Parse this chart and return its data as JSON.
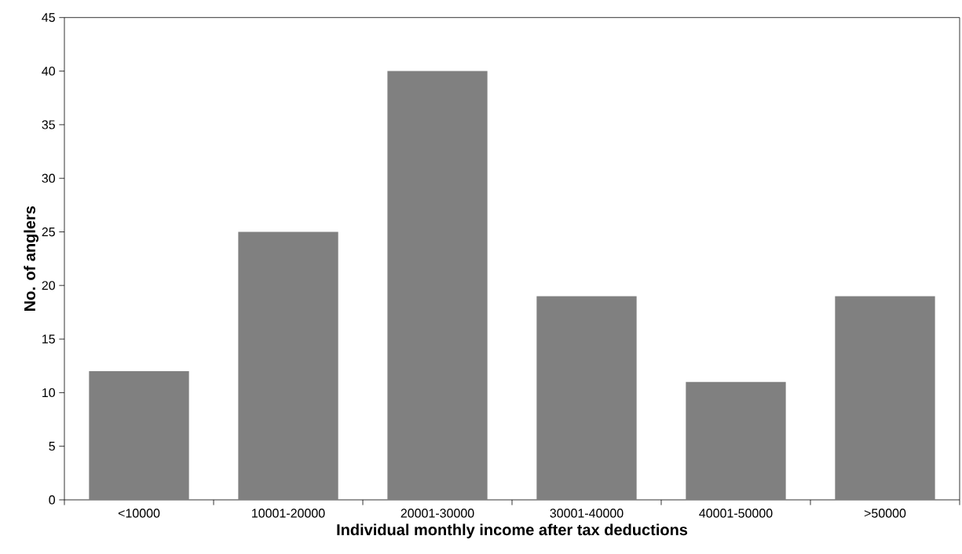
{
  "chart_data": {
    "type": "bar",
    "xlabel": "Individual monthly income after tax deductions",
    "ylabel": "No. of anglers",
    "categories": [
      "<10000",
      "10001-20000",
      "20001-30000",
      "30001-40000",
      "40001-50000",
      ">50000"
    ],
    "values": [
      12,
      25,
      40,
      19,
      11,
      19
    ],
    "color": "#808080",
    "ylim": [
      0,
      45
    ],
    "yticks": [
      0,
      5,
      10,
      15,
      20,
      25,
      30,
      35,
      40,
      45
    ]
  }
}
